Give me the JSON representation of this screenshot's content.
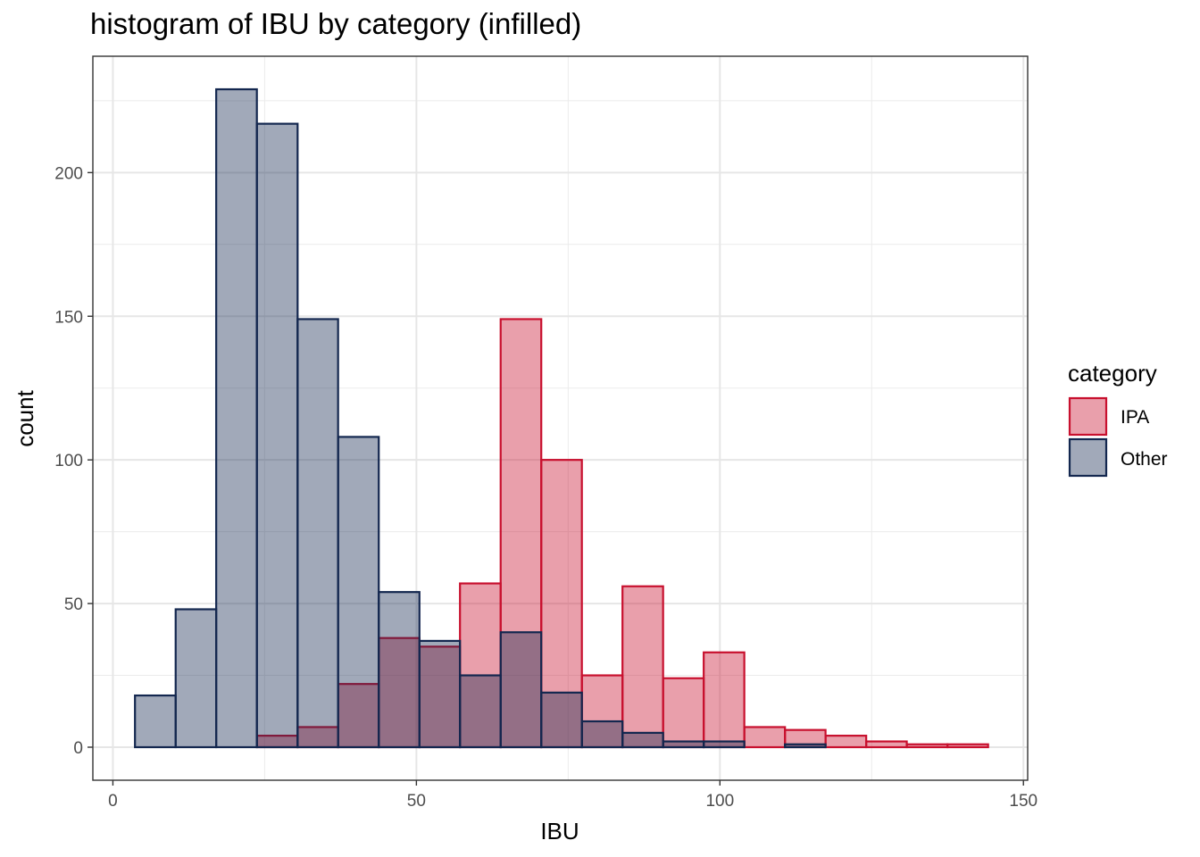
{
  "chart_data": {
    "type": "bar",
    "title": "histogram of IBU by category (infilled)",
    "xlabel": "IBU",
    "ylabel": "count",
    "xlim": [
      -3.3,
      150.7
    ],
    "ylim": [
      -11.5,
      240.5
    ],
    "x_ticks": [
      0,
      50,
      100,
      150
    ],
    "y_ticks": [
      0,
      50,
      100,
      150,
      200
    ],
    "x_tick_labels": [
      "0",
      "50",
      "100",
      "150"
    ],
    "y_tick_labels": [
      "0",
      "50",
      "100",
      "150",
      "200"
    ],
    "bin_edges": [
      3.64,
      10.34,
      17.02,
      23.72,
      30.43,
      37.1,
      43.8,
      50.5,
      57.18,
      63.88,
      70.57,
      77.26,
      83.95,
      90.64,
      97.33,
      104.02,
      110.72,
      117.4,
      124.1,
      130.78,
      137.48,
      144.18
    ],
    "series": [
      {
        "name": "IPA",
        "fill": "#c8102e",
        "stroke": "#c8102e",
        "values": [
          0,
          0,
          0,
          4,
          7,
          22,
          38,
          35,
          57,
          149,
          100,
          25,
          56,
          24,
          33,
          7,
          6,
          4,
          2,
          1,
          1
        ]
      },
      {
        "name": "Other",
        "fill": "#13274f",
        "stroke": "#13274f",
        "values": [
          18,
          48,
          229,
          217,
          149,
          108,
          54,
          37,
          25,
          40,
          19,
          9,
          5,
          2,
          2,
          0,
          1,
          0,
          0,
          0,
          0
        ]
      }
    ],
    "fill_opacity": 0.4,
    "grid": true,
    "legend": {
      "title": "category",
      "position": "right",
      "entries": [
        "IPA",
        "Other"
      ]
    }
  }
}
